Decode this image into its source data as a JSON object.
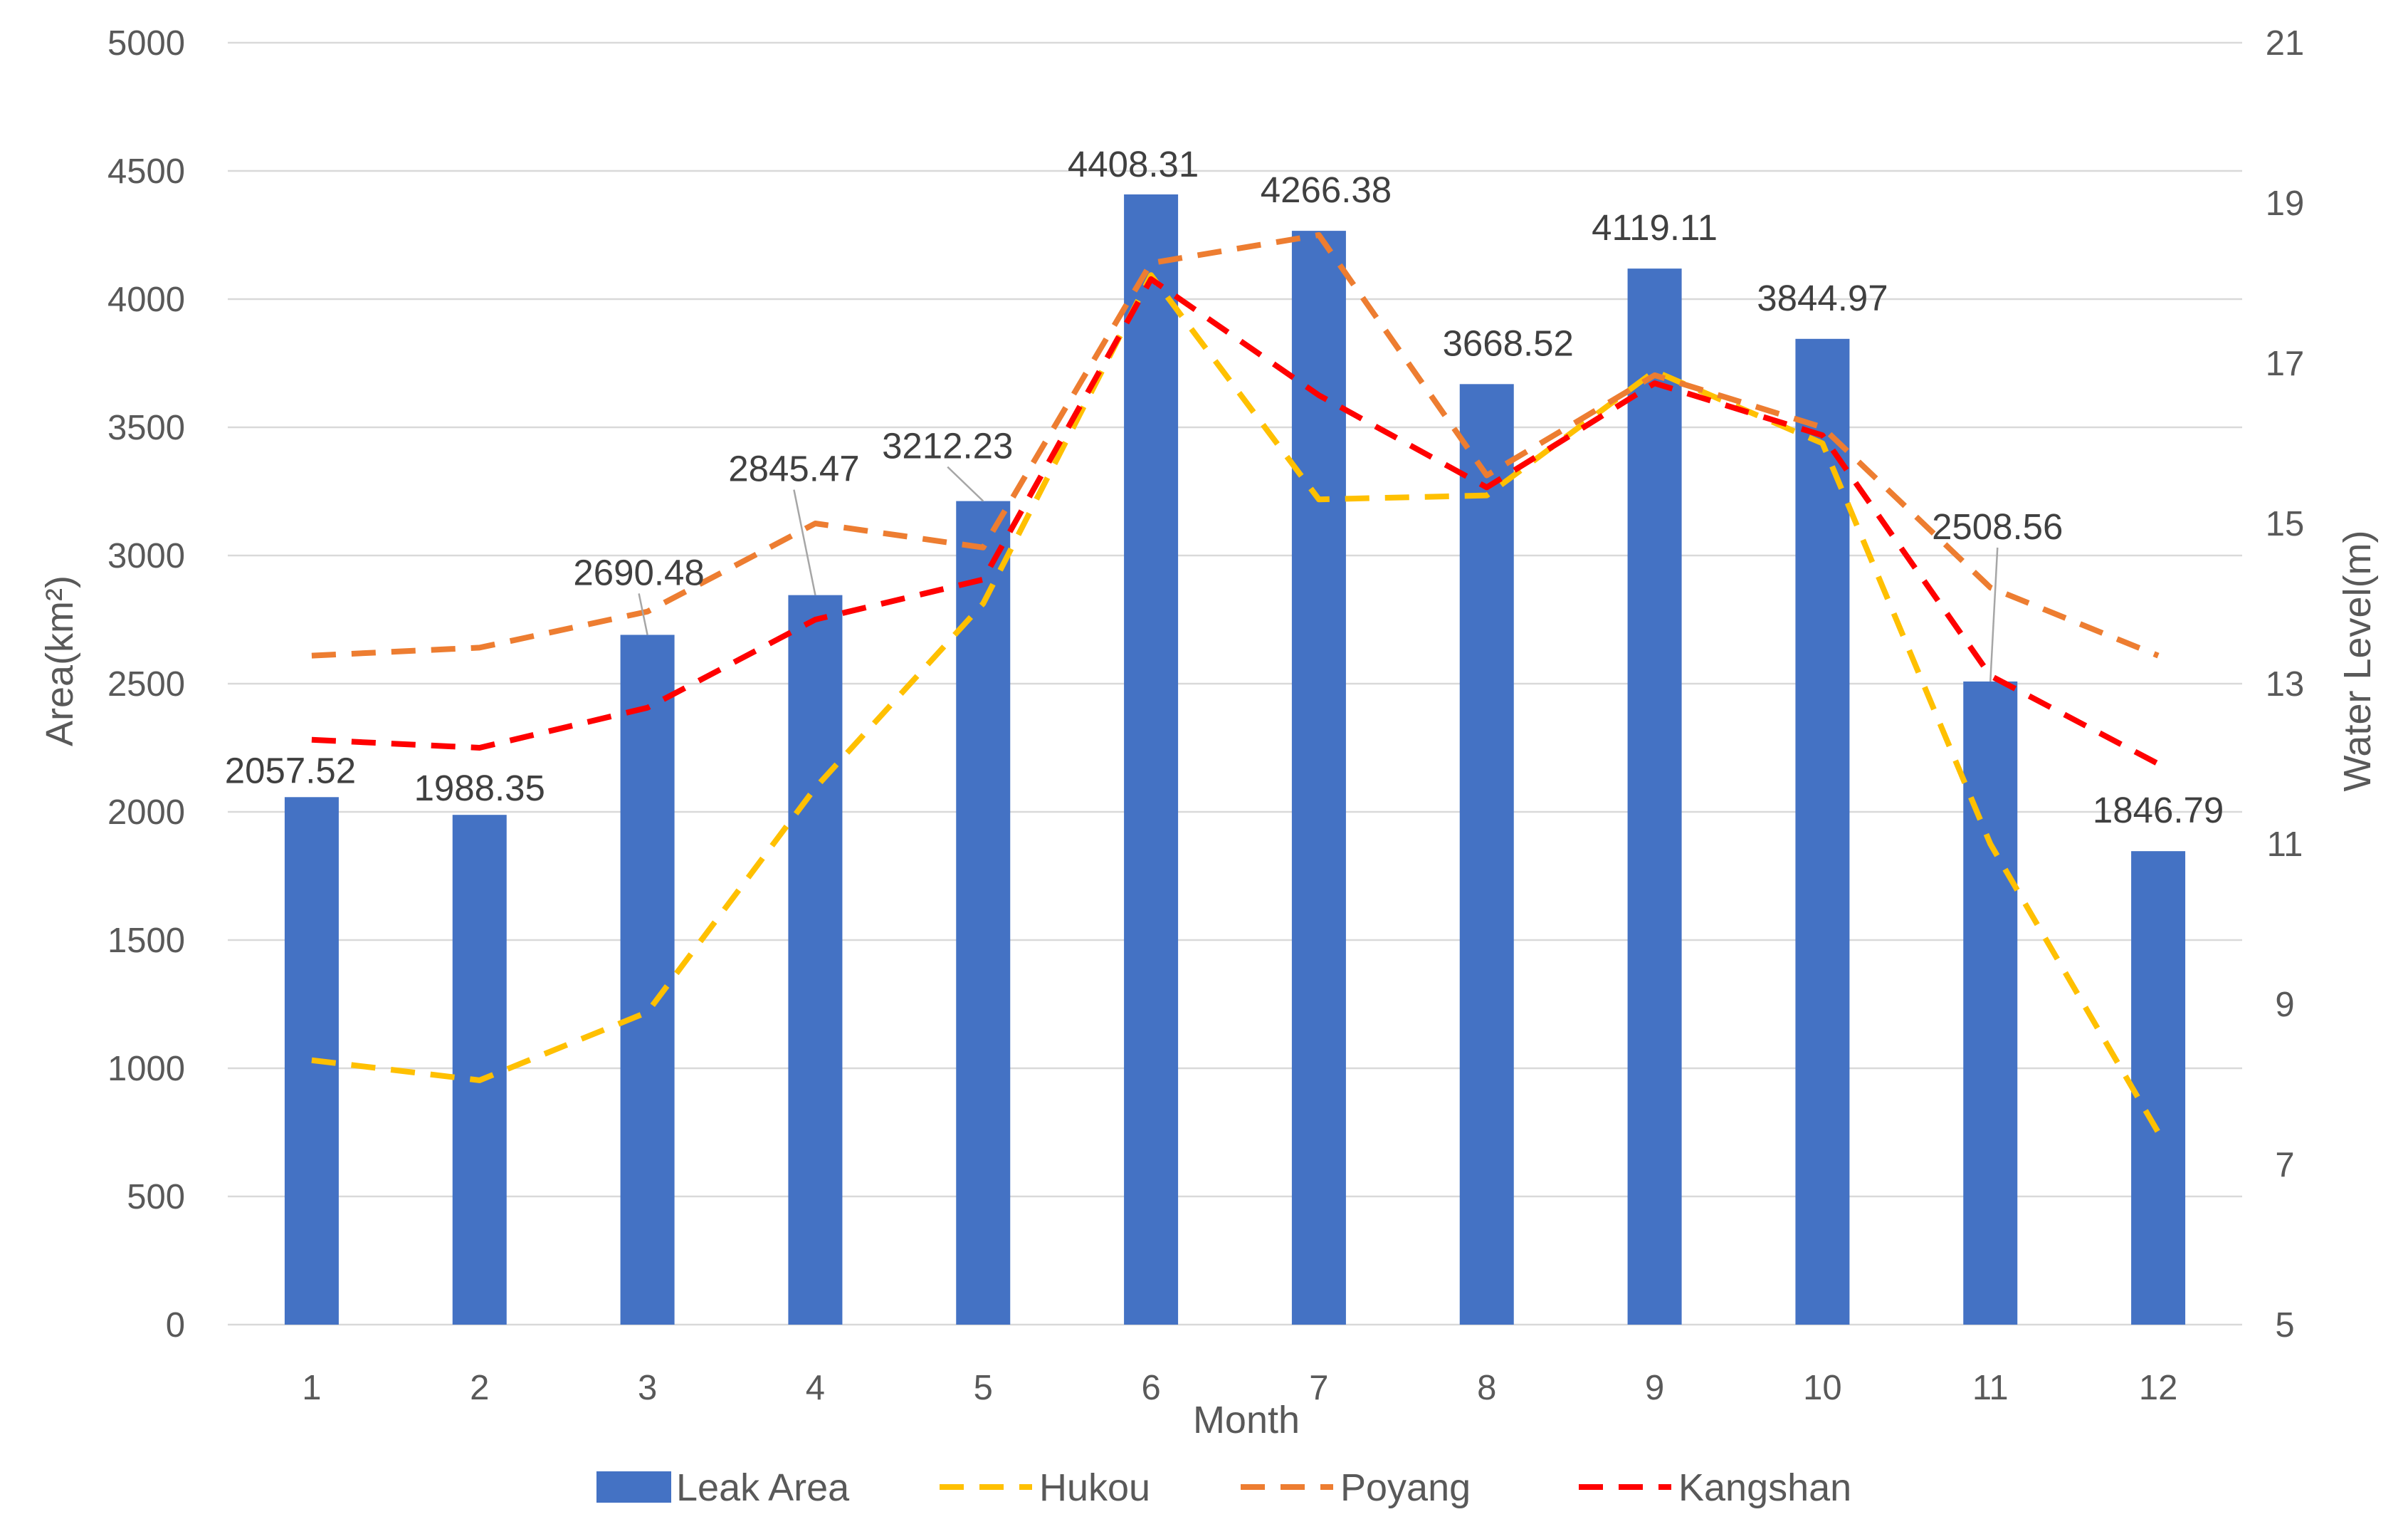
{
  "chart_data": {
    "type": "bar+line",
    "xlabel": "Month",
    "ylabel_left": "Area(km²)",
    "ylabel_right": "Water Level(m)",
    "categories": [
      "1",
      "2",
      "3",
      "4",
      "5",
      "6",
      "7",
      "8",
      "9",
      "10",
      "11",
      "12"
    ],
    "ylim_left": [
      0,
      5000
    ],
    "yticks_left": [
      0,
      500,
      1000,
      1500,
      2000,
      2500,
      3000,
      3500,
      4000,
      4500,
      5000
    ],
    "ylim_right": [
      5,
      21
    ],
    "yticks_right": [
      5,
      7,
      9,
      11,
      13,
      15,
      17,
      19,
      21
    ],
    "grid": true,
    "legend_position": "bottom",
    "bars": {
      "name": "Leak Area",
      "color": "#4472C4",
      "values": [
        2057.52,
        1988.35,
        2690.48,
        2845.47,
        3212.23,
        4408.31,
        4266.38,
        3668.52,
        4119.11,
        3844.97,
        2508.56,
        1846.79
      ],
      "labels": [
        "2057.52",
        "1988.35",
        "2690.48",
        "2845.47",
        "3212.23",
        "4408.31",
        "4266.38",
        "3668.52",
        "4119.11",
        "3844.97",
        "2508.56",
        "1846.79"
      ]
    },
    "series": [
      {
        "name": "Hukou",
        "color": "#FFC000",
        "axis": "right",
        "style": "dashed",
        "values": [
          8.3,
          8.05,
          8.9,
          11.7,
          14.0,
          18.1,
          15.3,
          15.35,
          16.9,
          16.0,
          11.0,
          7.4
        ]
      },
      {
        "name": "Poyang",
        "color": "#ED7D31",
        "axis": "right",
        "style": "dashed",
        "values": [
          13.35,
          13.45,
          13.9,
          15.0,
          14.7,
          18.25,
          18.6,
          15.6,
          16.85,
          16.2,
          14.2,
          13.35
        ]
      },
      {
        "name": "Kangshan",
        "color": "#FF0000",
        "axis": "right",
        "style": "dashed",
        "values": [
          12.3,
          12.2,
          12.7,
          13.8,
          14.3,
          18.05,
          16.6,
          15.45,
          16.75,
          16.1,
          13.1,
          12.0
        ]
      }
    ]
  }
}
